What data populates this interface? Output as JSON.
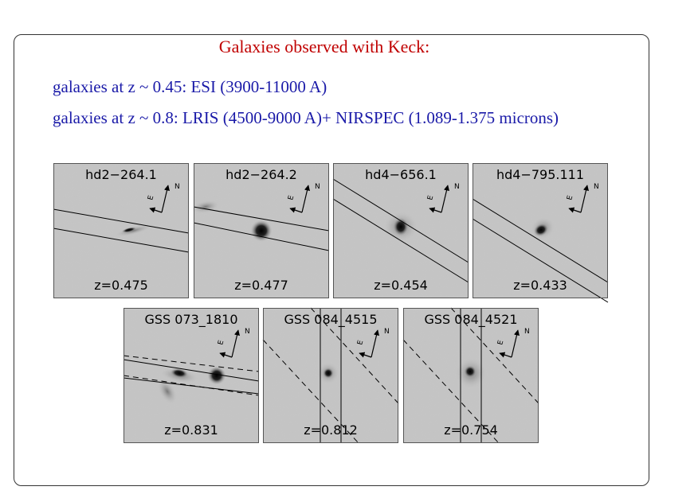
{
  "title": "Galaxies observed with Keck:",
  "lines": [
    "galaxies at z ~ 0.45: ESI (3900-11000 A)",
    "galaxies at z ~ 0.8: LRIS (4500-9000 A)+ NIRSPEC (1.089-1.375 microns)"
  ],
  "compass": {
    "e": "E",
    "n": "N"
  },
  "panels": [
    {
      "name": "hd2−264.1",
      "z": "z=0.475"
    },
    {
      "name": "hd2−264.2",
      "z": "z=0.477"
    },
    {
      "name": "hd4−656.1",
      "z": "z=0.454"
    },
    {
      "name": "hd4−795.111",
      "z": "z=0.433"
    },
    {
      "name": "GSS 073_1810",
      "z": "z=0.831"
    },
    {
      "name": "GSS 084_4515",
      "z": "z=0.812"
    },
    {
      "name": "GSS 084_4521",
      "z": "z=0.754"
    }
  ]
}
